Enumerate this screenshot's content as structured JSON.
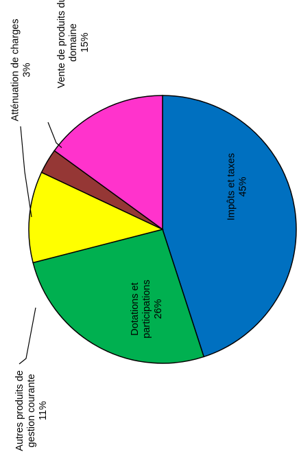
{
  "chart_data": {
    "type": "pie",
    "start_angle_deg": 0,
    "direction": "clockwise",
    "slices": [
      {
        "name": "Impôts et taxes",
        "value": 45,
        "label": "45%",
        "color": "#0070C0",
        "lines": [
          "Impôts et taxes",
          "45%"
        ],
        "placement": "inside"
      },
      {
        "name": "Dotations et participations",
        "value": 26,
        "label": "26%",
        "color": "#00B050",
        "lines": [
          "Dotations et",
          "participations",
          "26%"
        ],
        "placement": "inside"
      },
      {
        "name": "Autres produits de gestion courante",
        "value": 11,
        "label": "11%",
        "color": "#FFFF00",
        "lines": [
          "Autres produits de",
          "gestion courante",
          "11%"
        ],
        "placement": "outside"
      },
      {
        "name": "Atténuation de charges",
        "value": 3,
        "label": "3%",
        "color": "#953735",
        "lines": [
          "Atténuation de charges",
          "3%"
        ],
        "placement": "outside"
      },
      {
        "name": "Vente de produits du domaine",
        "value": 15,
        "label": "15%",
        "color": "#FF33CC",
        "lines": [
          "Vente de produits du",
          "domaine",
          "15%"
        ],
        "placement": "outside"
      }
    ]
  }
}
